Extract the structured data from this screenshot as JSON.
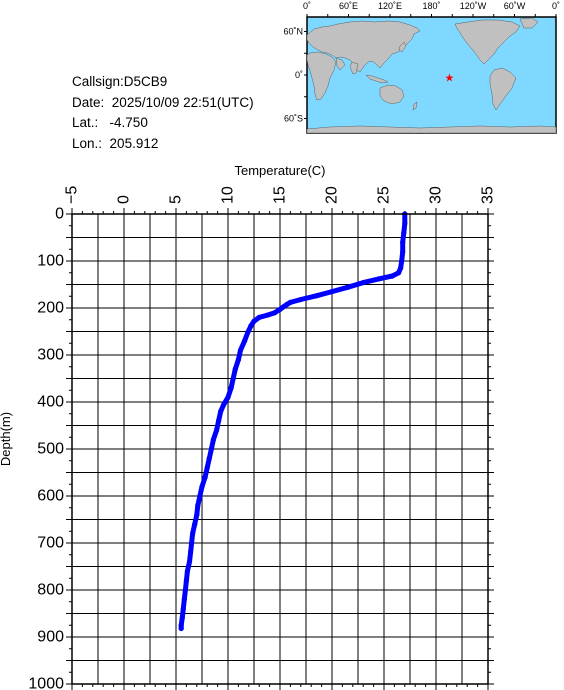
{
  "info": {
    "callsign_label": "Callsign:",
    "callsign": "D5CB9",
    "date_label": "Date:",
    "date": "2025/10/09 22:51(UTC)",
    "lat_label": "Lat.:",
    "lat": "-4.750",
    "lon_label": "Lon.:",
    "lon": "205.912"
  },
  "map": {
    "top_labels": [
      "0˚",
      "60˚E",
      "120˚E",
      "180˚",
      "120˚W",
      "60˚W",
      "0˚"
    ],
    "left_labels": [
      "60˚N",
      "0˚",
      "60˚S"
    ],
    "ocean_color": "#7fd8ff",
    "land_color": "#c0c0c0",
    "marker_color": "#ff0000",
    "marker_lon": 205.912,
    "marker_lat": -4.75
  },
  "chart_data": {
    "type": "line",
    "title": "",
    "xlabel": "Temperature(C)",
    "ylabel": "Depth(m)",
    "xlim": [
      -5,
      35
    ],
    "ylim": [
      1000,
      0
    ],
    "x_ticks": [
      -5,
      0,
      5,
      10,
      15,
      20,
      25,
      30,
      35
    ],
    "y_ticks": [
      0,
      100,
      200,
      300,
      400,
      500,
      600,
      700,
      800,
      900,
      1000
    ],
    "grid": true,
    "line_color": "#0000ff",
    "series": [
      {
        "name": "",
        "points": [
          [
            27.0,
            0
          ],
          [
            27.0,
            20
          ],
          [
            26.9,
            40
          ],
          [
            26.8,
            60
          ],
          [
            26.8,
            80
          ],
          [
            26.7,
            100
          ],
          [
            26.6,
            115
          ],
          [
            26.4,
            125
          ],
          [
            25.8,
            132
          ],
          [
            24.5,
            138
          ],
          [
            23.0,
            146
          ],
          [
            21.5,
            156
          ],
          [
            20.0,
            165
          ],
          [
            18.5,
            174
          ],
          [
            17.0,
            182
          ],
          [
            16.0,
            188
          ],
          [
            15.7,
            192
          ],
          [
            15.3,
            198
          ],
          [
            15.0,
            203
          ],
          [
            14.5,
            210
          ],
          [
            13.8,
            215
          ],
          [
            13.0,
            220
          ],
          [
            12.5,
            228
          ],
          [
            12.2,
            238
          ],
          [
            11.9,
            252
          ],
          [
            11.6,
            270
          ],
          [
            11.2,
            290
          ],
          [
            11.0,
            310
          ],
          [
            10.7,
            330
          ],
          [
            10.5,
            350
          ],
          [
            10.3,
            370
          ],
          [
            10.0,
            390
          ],
          [
            9.6,
            405
          ],
          [
            9.3,
            420
          ],
          [
            9.1,
            440
          ],
          [
            8.9,
            460
          ],
          [
            8.6,
            480
          ],
          [
            8.4,
            500
          ],
          [
            8.2,
            520
          ],
          [
            8.0,
            540
          ],
          [
            7.8,
            560
          ],
          [
            7.5,
            580
          ],
          [
            7.3,
            600
          ],
          [
            7.1,
            620
          ],
          [
            7.0,
            640
          ],
          [
            6.8,
            660
          ],
          [
            6.6,
            680
          ],
          [
            6.5,
            700
          ],
          [
            6.4,
            720
          ],
          [
            6.3,
            740
          ],
          [
            6.1,
            760
          ],
          [
            6.0,
            780
          ],
          [
            5.9,
            800
          ],
          [
            5.8,
            820
          ],
          [
            5.7,
            840
          ],
          [
            5.6,
            860
          ],
          [
            5.5,
            875
          ],
          [
            5.5,
            882
          ]
        ]
      }
    ]
  }
}
